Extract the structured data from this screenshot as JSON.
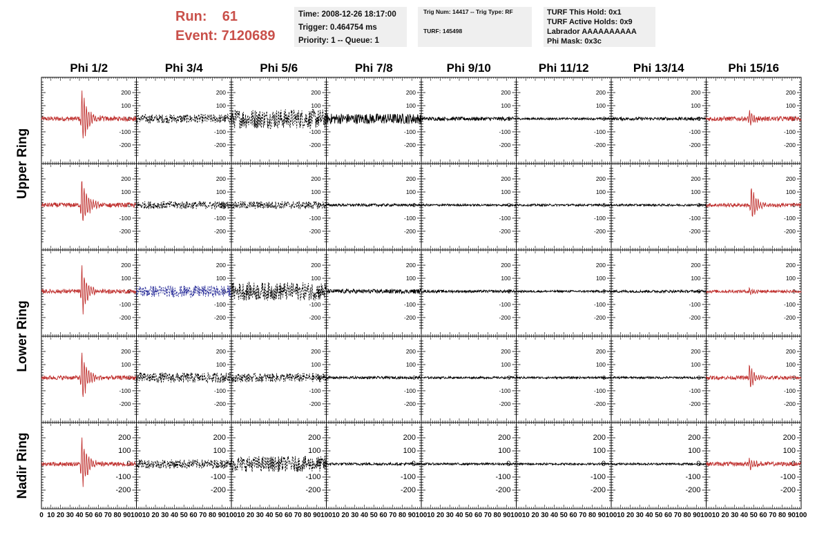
{
  "header": {
    "run_label": "Run:    61",
    "event_label": "Event: 7120689"
  },
  "info_time": {
    "time": "Time: 2008-12-26 18:17:00",
    "trigger": "Trigger: 0.464754 ms",
    "priority": "Priority: 1 -- Queue: 1"
  },
  "info_trig": {
    "line1": "Trig Num: 14417 -- Trig Type: RF",
    "line2": "TURF: 145498"
  },
  "info_turf": {
    "hold": "TURF This Hold: 0x1",
    "active": "TURF Active Holds: 0x9",
    "labrador": "Labrador AAAAAAAAAA",
    "mask": "Phi Mask: 0x3c"
  },
  "colors": {
    "triggered": "#c0312f",
    "normal": "#000000",
    "highlight": "#2b2f9a",
    "accent": "#c9504a"
  },
  "chart_data": {
    "type": "line",
    "columns": [
      "Phi 1/2",
      "Phi 3/4",
      "Phi 5/6",
      "Phi 7/8",
      "Phi 9/10",
      "Phi 11/12",
      "Phi 13/14",
      "Phi 15/16"
    ],
    "rows": [
      "Upper Ring",
      "Upper Ring",
      "Lower Ring",
      "Lower Ring",
      "Nadir Ring"
    ],
    "row_titles": [
      "Upper Ring",
      "Lower Ring",
      "Nadir Ring"
    ],
    "xlim": [
      0,
      100
    ],
    "ylim": [
      -290,
      290
    ],
    "yticks": [
      -200,
      -100,
      0,
      100,
      200
    ],
    "xticks": [
      0,
      10,
      20,
      30,
      40,
      50,
      60,
      70,
      80,
      90,
      100
    ],
    "grid": false,
    "panels": [
      [
        {
          "color": "triggered",
          "style": "solid",
          "pulse_amp": 280,
          "pulse_center": 42,
          "noise_amp": 18
        },
        {
          "color": "normal",
          "style": "dashed",
          "pulse_amp": 0,
          "pulse_center": 50,
          "noise_amp": 35
        },
        {
          "color": "normal",
          "style": "dashed",
          "pulse_amp": 0,
          "pulse_center": 50,
          "noise_amp": 75
        },
        {
          "color": "normal",
          "style": "solid",
          "pulse_amp": 0,
          "pulse_center": 50,
          "noise_amp": 40
        },
        {
          "color": "normal",
          "style": "solid",
          "pulse_amp": 0,
          "pulse_center": 50,
          "noise_amp": 14
        },
        {
          "color": "normal",
          "style": "solid",
          "pulse_amp": 0,
          "pulse_center": 50,
          "noise_amp": 8
        },
        {
          "color": "normal",
          "style": "solid",
          "pulse_amp": 0,
          "pulse_center": 50,
          "noise_amp": 12
        },
        {
          "color": "triggered",
          "style": "solid",
          "pulse_amp": 70,
          "pulse_center": 45,
          "noise_amp": 18
        }
      ],
      [
        {
          "color": "triggered",
          "style": "solid",
          "pulse_amp": 250,
          "pulse_center": 42,
          "noise_amp": 18
        },
        {
          "color": "normal",
          "style": "dashed",
          "pulse_amp": 0,
          "pulse_center": 50,
          "noise_amp": 30
        },
        {
          "color": "normal",
          "style": "dashed",
          "pulse_amp": 0,
          "pulse_center": 50,
          "noise_amp": 30
        },
        {
          "color": "normal",
          "style": "solid",
          "pulse_amp": 0,
          "pulse_center": 50,
          "noise_amp": 10
        },
        {
          "color": "normal",
          "style": "solid",
          "pulse_amp": 0,
          "pulse_center": 50,
          "noise_amp": 8
        },
        {
          "color": "normal",
          "style": "solid",
          "pulse_amp": 0,
          "pulse_center": 50,
          "noise_amp": 8
        },
        {
          "color": "normal",
          "style": "solid",
          "pulse_amp": 0,
          "pulse_center": 50,
          "noise_amp": 8
        },
        {
          "color": "triggered",
          "style": "solid",
          "pulse_amp": 170,
          "pulse_center": 47,
          "noise_amp": 14
        }
      ],
      [
        {
          "color": "triggered",
          "style": "solid",
          "pulse_amp": 240,
          "pulse_center": 42,
          "noise_amp": 16
        },
        {
          "color": "highlight",
          "style": "dashed",
          "pulse_amp": 0,
          "pulse_center": 50,
          "noise_amp": 45
        },
        {
          "color": "normal",
          "style": "dashed",
          "pulse_amp": 0,
          "pulse_center": 50,
          "noise_amp": 70
        },
        {
          "color": "normal",
          "style": "solid",
          "pulse_amp": 0,
          "pulse_center": 50,
          "noise_amp": 16
        },
        {
          "color": "normal",
          "style": "solid",
          "pulse_amp": 0,
          "pulse_center": 50,
          "noise_amp": 10
        },
        {
          "color": "normal",
          "style": "solid",
          "pulse_amp": 0,
          "pulse_center": 50,
          "noise_amp": 8
        },
        {
          "color": "normal",
          "style": "solid",
          "pulse_amp": 0,
          "pulse_center": 50,
          "noise_amp": 10
        },
        {
          "color": "triggered",
          "style": "solid",
          "pulse_amp": 35,
          "pulse_center": 45,
          "noise_amp": 12
        }
      ],
      [
        {
          "color": "triggered",
          "style": "solid",
          "pulse_amp": 240,
          "pulse_center": 42,
          "noise_amp": 16
        },
        {
          "color": "normal",
          "style": "dashed",
          "pulse_amp": 0,
          "pulse_center": 50,
          "noise_amp": 40
        },
        {
          "color": "normal",
          "style": "dashed",
          "pulse_amp": 0,
          "pulse_center": 50,
          "noise_amp": 35
        },
        {
          "color": "normal",
          "style": "solid",
          "pulse_amp": 0,
          "pulse_center": 50,
          "noise_amp": 10
        },
        {
          "color": "normal",
          "style": "solid",
          "pulse_amp": 0,
          "pulse_center": 50,
          "noise_amp": 8
        },
        {
          "color": "normal",
          "style": "solid",
          "pulse_amp": 0,
          "pulse_center": 50,
          "noise_amp": 8
        },
        {
          "color": "normal",
          "style": "solid",
          "pulse_amp": 0,
          "pulse_center": 50,
          "noise_amp": 8
        },
        {
          "color": "triggered",
          "style": "solid",
          "pulse_amp": 120,
          "pulse_center": 45,
          "noise_amp": 14
        }
      ],
      [
        {
          "color": "triggered",
          "style": "solid",
          "pulse_amp": 250,
          "pulse_center": 42,
          "noise_amp": 16
        },
        {
          "color": "normal",
          "style": "dashed",
          "pulse_amp": 0,
          "pulse_center": 50,
          "noise_amp": 35
        },
        {
          "color": "normal",
          "style": "dashed",
          "pulse_amp": 0,
          "pulse_center": 50,
          "noise_amp": 60
        },
        {
          "color": "normal",
          "style": "solid",
          "pulse_amp": 0,
          "pulse_center": 50,
          "noise_amp": 10
        },
        {
          "color": "normal",
          "style": "solid",
          "pulse_amp": 0,
          "pulse_center": 50,
          "noise_amp": 8
        },
        {
          "color": "normal",
          "style": "solid",
          "pulse_amp": 0,
          "pulse_center": 50,
          "noise_amp": 8
        },
        {
          "color": "normal",
          "style": "solid",
          "pulse_amp": 0,
          "pulse_center": 50,
          "noise_amp": 8
        },
        {
          "color": "triggered",
          "style": "solid",
          "pulse_amp": 55,
          "pulse_center": 45,
          "noise_amp": 16
        }
      ]
    ]
  }
}
